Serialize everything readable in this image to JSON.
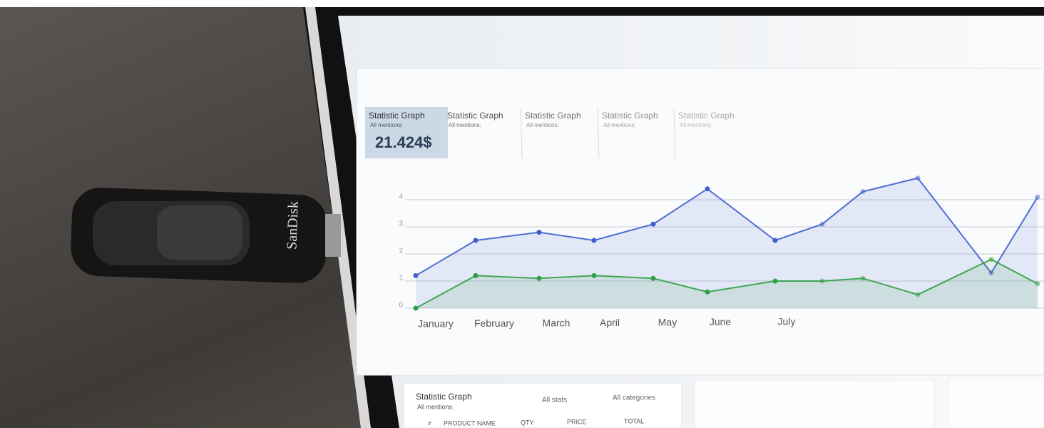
{
  "device": {
    "brand": "SanDisk"
  },
  "tabs": [
    {
      "title": "Statistic Graph",
      "subtitle": "All mentions:",
      "value": "21.424$"
    },
    {
      "title": "Statistic Graph",
      "subtitle": "All mentions:"
    },
    {
      "title": "Statistic Graph",
      "subtitle": "All mentions:"
    },
    {
      "title": "Statistic Graph",
      "subtitle": "All mentions:"
    },
    {
      "title": "Statistic Graph",
      "subtitle": "All mentions:"
    }
  ],
  "chart_data": {
    "type": "line",
    "categories": [
      "January",
      "February",
      "March",
      "April",
      "May",
      "June",
      "July",
      null,
      null,
      null,
      null,
      null
    ],
    "series": [
      {
        "color": "#3f5fd0",
        "values": [
          1.2,
          2.5,
          2.8,
          2.5,
          3.1,
          4.4,
          2.5,
          3.1,
          4.3,
          4.8,
          1.3,
          4.1
        ]
      },
      {
        "color": "#2fa043",
        "values": [
          0,
          1.2,
          1.1,
          1.2,
          1.1,
          0.6,
          1.0,
          1.0,
          1.1,
          0.5,
          1.8,
          0.9
        ]
      }
    ],
    "ylim": [
      0,
      5
    ],
    "yticks": [
      0,
      1,
      2,
      3,
      4
    ],
    "grid": true
  },
  "table": {
    "title": "Statistic Graph",
    "subtitle": "All mentions:",
    "filters": [
      "All stats",
      "All categories"
    ],
    "columns": [
      "#",
      "PRODUCT NAME",
      "QTY",
      "PRICE",
      "TOTAL"
    ]
  }
}
